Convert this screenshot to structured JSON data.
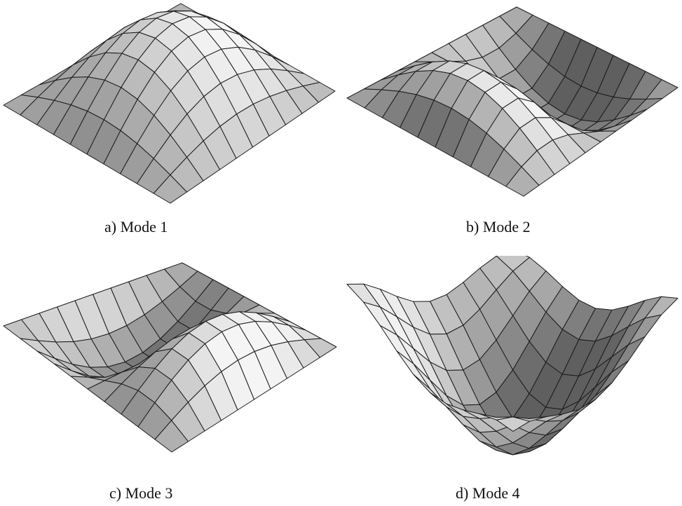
{
  "figure": {
    "panels": [
      {
        "id": "mode-1",
        "caption": "a) Mode 1"
      },
      {
        "id": "mode-2",
        "caption": "b) Mode 2"
      },
      {
        "id": "mode-3",
        "caption": "c) Mode 3"
      },
      {
        "id": "mode-4",
        "caption": "d) Mode 4"
      }
    ]
  }
}
